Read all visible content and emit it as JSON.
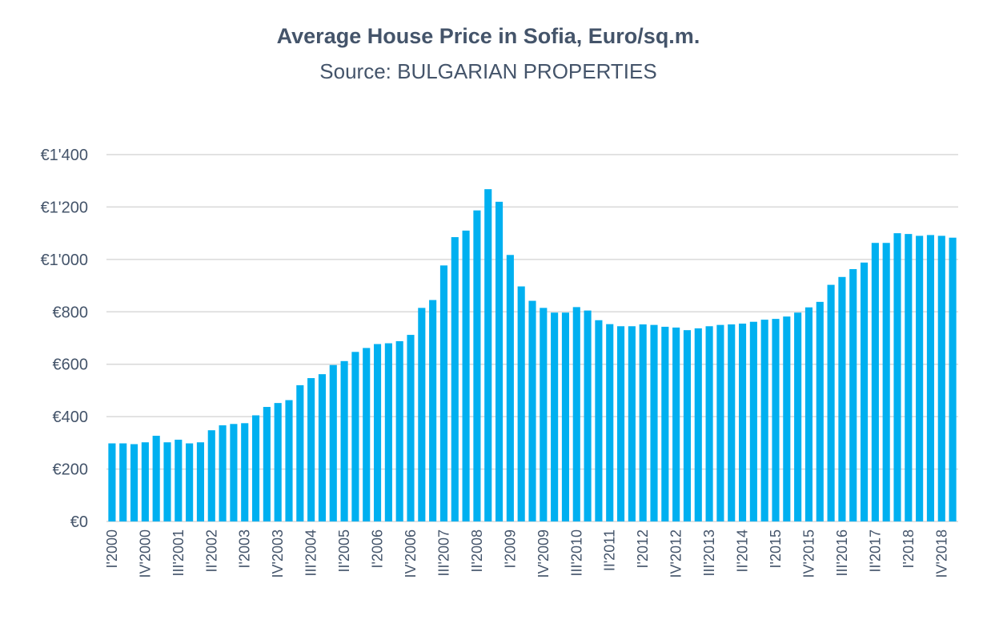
{
  "chart_data": {
    "type": "bar",
    "title": "Average House Price in Sofia, Euro/sq.m.",
    "subtitle": "Source: BULGARIAN PROPERTIES",
    "xlabel": "",
    "ylabel": "",
    "ylim": [
      0,
      1400
    ],
    "yticks": [
      "€0",
      "€200",
      "€400",
      "€600",
      "€800",
      "€1'000",
      "€1'200",
      "€1'400"
    ],
    "ytick_values": [
      0,
      200,
      400,
      600,
      800,
      1000,
      1200,
      1400
    ],
    "grid": true,
    "legend": "none",
    "colors": {
      "bar": "#00b0f0",
      "grid": "#d9d9d9",
      "text": "#44546a"
    },
    "categories": [
      "I'2000",
      "II'2000",
      "III'2000",
      "IV'2000",
      "I'2001",
      "II'2001",
      "III'2001",
      "IV'2001",
      "I'2002",
      "II'2002",
      "III'2002",
      "IV'2002",
      "I'2003",
      "II'2003",
      "III'2003",
      "IV'2003",
      "I'2004",
      "II'2004",
      "III'2004",
      "IV'2004",
      "I'2005",
      "II'2005",
      "III'2005",
      "IV'2005",
      "I'2006",
      "II'2006",
      "III'2006",
      "IV'2006",
      "I'2007",
      "II'2007",
      "III'2007",
      "IV'2007",
      "I'2008",
      "II'2008",
      "III'2008",
      "IV'2008",
      "I'2009",
      "II'2009",
      "III'2009",
      "IV'2009",
      "I'2010",
      "II'2010",
      "III'2010",
      "IV'2010",
      "I'2011",
      "II'2011",
      "III'2011",
      "IV'2011",
      "I'2012",
      "II'2012",
      "III'2012",
      "IV'2012",
      "I'2013",
      "II'2013",
      "III'2013",
      "IV'2013",
      "I'2014",
      "II'2014",
      "III'2014",
      "IV'2014",
      "I'2015",
      "II'2015",
      "III'2015",
      "IV'2015",
      "I'2016",
      "II'2016",
      "III'2016",
      "IV'2016",
      "I'2017",
      "II'2017",
      "III'2017",
      "IV'2017",
      "I'2018",
      "II'2018",
      "III'2018",
      "IV'2018",
      "I'2019"
    ],
    "visible_tick_labels": [
      "I'2000",
      "IV'2000",
      "III'2001",
      "II'2002",
      "I'2003",
      "IV'2003",
      "III'2004",
      "II'2005",
      "I'2006",
      "IV'2006",
      "III'2007",
      "II'2008",
      "I'2009",
      "IV'2009",
      "III'2010",
      "II'2011",
      "I'2012",
      "IV'2012",
      "III'2013",
      "II'2014",
      "I'2015",
      "IV'2015",
      "III'2016",
      "II'2017",
      "I'2018",
      "IV'2018"
    ],
    "values": [
      298,
      298,
      295,
      302,
      327,
      302,
      312,
      298,
      302,
      348,
      367,
      372,
      375,
      405,
      437,
      452,
      463,
      520,
      547,
      562,
      597,
      612,
      647,
      662,
      677,
      680,
      688,
      712,
      815,
      845,
      977,
      1085,
      1110,
      1187,
      1268,
      1220,
      1017,
      897,
      842,
      815,
      797,
      797,
      818,
      805,
      768,
      753,
      745,
      745,
      752,
      750,
      743,
      740,
      730,
      737,
      745,
      750,
      752,
      755,
      762,
      770,
      773,
      782,
      797,
      817,
      838,
      903,
      933,
      963,
      988,
      1063,
      1063,
      1100,
      1097,
      1090,
      1093,
      1090,
      1083
    ]
  }
}
